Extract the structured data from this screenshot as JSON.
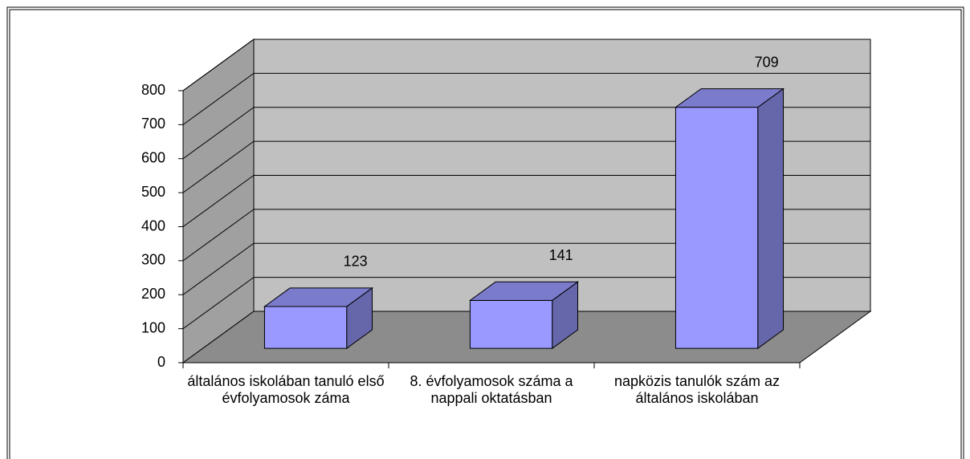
{
  "chart_data": {
    "type": "bar3d",
    "categories": [
      "általános iskolában tanuló első évfolyamosok záma",
      "8. évfolyamosok száma a nappali oktatásban",
      "napközis tanulók szám az általános iskolában"
    ],
    "values": [
      123,
      141,
      709
    ],
    "color": "#9999ff",
    "ylim": [
      0,
      800
    ],
    "yticks": [
      0,
      100,
      200,
      300,
      400,
      500,
      600,
      700,
      800
    ],
    "grid": true
  }
}
